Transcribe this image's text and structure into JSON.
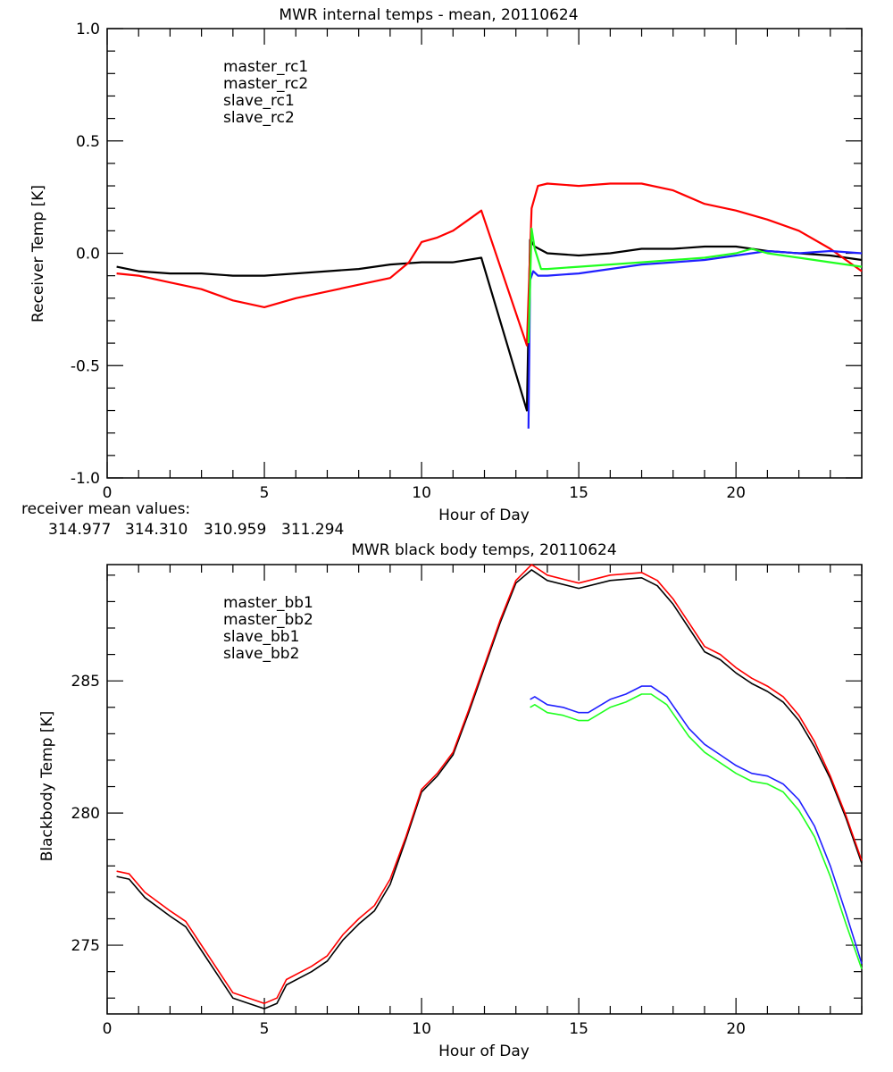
{
  "colors": {
    "black": "#000000",
    "red": "#ff0000",
    "blue": "#2020ff",
    "green": "#20ff20"
  },
  "chart_data": [
    {
      "type": "line",
      "title": "MWR internal temps - mean, 20110624",
      "xlabel": "Hour of Day",
      "ylabel": "Receiver Temp [K]",
      "xlim": [
        0,
        24
      ],
      "ylim": [
        -1.0,
        1.0
      ],
      "xticks": [
        "0",
        "5",
        "10",
        "15",
        "20"
      ],
      "yticks": [
        "1.0",
        "0.5",
        "0.0",
        "-0.5",
        "-1.0"
      ],
      "legend_position": "top-left",
      "footer_label": "receiver mean values:",
      "mean_values": [
        "314.977",
        "314.310",
        "310.959",
        "311.294"
      ],
      "series": [
        {
          "name": "master_rc1",
          "color": "#000000",
          "x": [
            0.3,
            1,
            2,
            3,
            4,
            5,
            6,
            7,
            8,
            9,
            10,
            11,
            11.9,
            13.35,
            13.45,
            13.6,
            14,
            15,
            16,
            17,
            18,
            19,
            20,
            21,
            22,
            23,
            24
          ],
          "y": [
            -0.06,
            -0.08,
            -0.09,
            -0.09,
            -0.1,
            -0.1,
            -0.09,
            -0.08,
            -0.07,
            -0.05,
            -0.04,
            -0.04,
            -0.02,
            -0.7,
            0.06,
            0.03,
            0.0,
            -0.01,
            0.0,
            0.02,
            0.02,
            0.03,
            0.03,
            0.01,
            0.0,
            -0.01,
            -0.03
          ]
        },
        {
          "name": "master_rc2",
          "color": "#ff0000",
          "x": [
            0.3,
            1,
            2,
            3,
            4,
            5,
            6,
            7,
            8,
            9,
            9.6,
            10,
            10.5,
            11,
            11.5,
            11.9,
            13.35,
            13.5,
            13.7,
            14,
            15,
            16,
            17,
            18,
            19,
            20,
            21,
            22,
            23,
            24
          ],
          "y": [
            -0.09,
            -0.1,
            -0.13,
            -0.16,
            -0.21,
            -0.24,
            -0.2,
            -0.17,
            -0.14,
            -0.11,
            -0.04,
            0.05,
            0.07,
            0.1,
            0.15,
            0.19,
            -0.41,
            0.2,
            0.3,
            0.31,
            0.3,
            0.31,
            0.31,
            0.28,
            0.22,
            0.19,
            0.15,
            0.1,
            0.02,
            -0.08
          ]
        },
        {
          "name": "slave_rc1",
          "color": "#2020ff",
          "x": [
            13.4,
            13.45,
            13.55,
            13.7,
            14,
            15,
            16,
            17,
            18,
            19,
            20,
            21,
            22,
            23,
            24
          ],
          "y": [
            -0.78,
            -0.12,
            -0.08,
            -0.1,
            -0.1,
            -0.09,
            -0.07,
            -0.05,
            -0.04,
            -0.03,
            -0.01,
            0.01,
            0.0,
            0.01,
            0.0
          ]
        },
        {
          "name": "slave_rc2",
          "color": "#20ff20",
          "x": [
            13.4,
            13.5,
            13.6,
            13.8,
            14,
            15,
            16,
            17,
            18,
            19,
            20,
            20.5,
            21,
            22,
            23,
            24
          ],
          "y": [
            -0.4,
            0.11,
            0.02,
            -0.07,
            -0.07,
            -0.06,
            -0.05,
            -0.04,
            -0.03,
            -0.02,
            0.0,
            0.02,
            0.0,
            -0.02,
            -0.04,
            -0.06
          ]
        }
      ]
    },
    {
      "type": "line",
      "title": "MWR black body temps, 20110624",
      "xlabel": "Hour of Day",
      "ylabel": "Blackbody Temp [K]",
      "xlim": [
        0,
        24
      ],
      "ylim": [
        272.4,
        289.4
      ],
      "xticks": [
        "0",
        "5",
        "10",
        "15",
        "20"
      ],
      "yticks": [
        "285",
        "280",
        "275"
      ],
      "legend_position": "top-left",
      "series": [
        {
          "name": "master_bb1",
          "color": "#000000",
          "x": [
            0.3,
            0.7,
            1.2,
            2,
            2.5,
            3,
            3.5,
            4,
            4.5,
            5,
            5.4,
            5.7,
            6.5,
            7,
            7.5,
            8,
            8.5,
            9,
            9.5,
            10,
            10.5,
            11,
            11.5,
            12,
            12.5,
            13,
            13.5,
            14,
            15,
            16,
            17,
            17.5,
            18,
            18.5,
            19,
            19.5,
            20,
            20.5,
            21,
            21.5,
            22,
            22.5,
            23,
            23.5,
            24
          ],
          "y": [
            277.6,
            277.5,
            276.8,
            276.1,
            275.7,
            274.8,
            273.9,
            273.0,
            272.8,
            272.6,
            272.8,
            273.5,
            274.0,
            274.4,
            275.2,
            275.8,
            276.3,
            277.3,
            279.0,
            280.8,
            281.4,
            282.2,
            283.8,
            285.5,
            287.2,
            288.7,
            289.2,
            288.8,
            288.5,
            288.8,
            288.9,
            288.6,
            287.9,
            287.0,
            286.1,
            285.8,
            285.3,
            284.9,
            284.6,
            284.2,
            283.5,
            282.5,
            281.3,
            279.8,
            278.1
          ]
        },
        {
          "name": "master_bb2",
          "color": "#ff0000",
          "x": [
            0.3,
            0.7,
            1.2,
            2,
            2.5,
            3,
            3.5,
            4,
            4.5,
            5,
            5.4,
            5.7,
            6.5,
            7,
            7.5,
            8,
            8.5,
            9,
            9.5,
            10,
            10.5,
            11,
            11.5,
            12,
            12.5,
            13,
            13.5,
            14,
            15,
            16,
            17,
            17.5,
            18,
            18.5,
            19,
            19.5,
            20,
            20.5,
            21,
            21.5,
            22,
            22.5,
            23,
            23.5,
            24
          ],
          "y": [
            277.8,
            277.7,
            277.0,
            276.3,
            275.9,
            275.0,
            274.1,
            273.2,
            273.0,
            272.8,
            273.0,
            273.7,
            274.2,
            274.6,
            275.4,
            276.0,
            276.5,
            277.5,
            279.1,
            280.9,
            281.5,
            282.3,
            283.9,
            285.6,
            287.3,
            288.8,
            289.4,
            289.0,
            288.7,
            289.0,
            289.1,
            288.8,
            288.1,
            287.2,
            286.3,
            286.0,
            285.5,
            285.1,
            284.8,
            284.4,
            283.7,
            282.7,
            281.4,
            279.9,
            278.2
          ]
        },
        {
          "name": "slave_bb1",
          "color": "#2020ff",
          "x": [
            13.45,
            13.6,
            14,
            14.5,
            15,
            15.3,
            16,
            16.5,
            17,
            17.3,
            17.8,
            18.5,
            19,
            19.5,
            20,
            20.5,
            21,
            21.5,
            22,
            22.5,
            23,
            23.5,
            24
          ],
          "y": [
            284.3,
            284.4,
            284.1,
            284.0,
            283.8,
            283.8,
            284.3,
            284.5,
            284.8,
            284.8,
            284.4,
            283.2,
            282.6,
            282.2,
            281.8,
            281.5,
            281.4,
            281.1,
            280.5,
            279.5,
            278.0,
            276.2,
            274.3
          ]
        },
        {
          "name": "slave_bb2",
          "color": "#20ff20",
          "x": [
            13.45,
            13.6,
            14,
            14.5,
            15,
            15.3,
            16,
            16.5,
            17,
            17.3,
            17.8,
            18.5,
            19,
            19.5,
            20,
            20.5,
            21,
            21.5,
            22,
            22.5,
            23,
            23.5,
            24
          ],
          "y": [
            284.0,
            284.1,
            283.8,
            283.7,
            283.5,
            283.5,
            284.0,
            284.2,
            284.5,
            284.5,
            284.1,
            282.9,
            282.3,
            281.9,
            281.5,
            281.2,
            281.1,
            280.8,
            280.1,
            279.1,
            277.6,
            275.8,
            274.1
          ]
        }
      ]
    }
  ]
}
